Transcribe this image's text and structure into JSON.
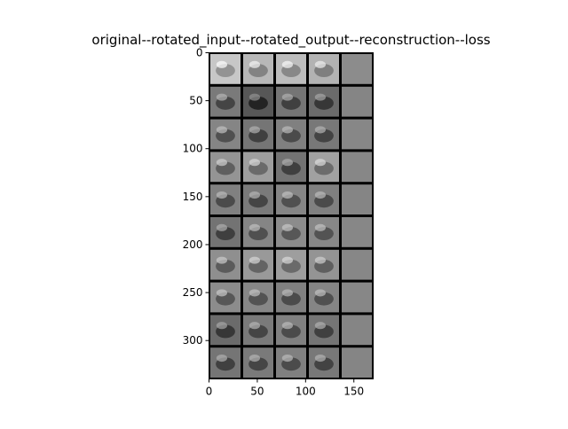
{
  "chart_data": {
    "type": "image-grid",
    "title": "original--rotated_input--rotated_output--reconstruction--loss",
    "xlabel": "",
    "ylabel": "",
    "xlim": [
      0,
      170
    ],
    "ylim": [
      0,
      340
    ],
    "x_ticks": [
      0,
      50,
      100,
      150
    ],
    "y_ticks": [
      0,
      50,
      100,
      150,
      200,
      250,
      300
    ],
    "columns": [
      "original",
      "rotated_input",
      "rotated_output",
      "reconstruction",
      "loss"
    ],
    "rows": 10,
    "cell_size": 34,
    "grid": false,
    "image_colormap": "gray",
    "row_tones": [
      [
        0.78,
        0.72,
        0.74,
        0.7,
        0.55
      ],
      [
        0.48,
        0.34,
        0.46,
        0.42,
        0.52
      ],
      [
        0.52,
        0.46,
        0.5,
        0.47,
        0.53
      ],
      [
        0.58,
        0.62,
        0.45,
        0.63,
        0.53
      ],
      [
        0.5,
        0.48,
        0.52,
        0.5,
        0.52
      ],
      [
        0.45,
        0.52,
        0.55,
        0.53,
        0.53
      ],
      [
        0.56,
        0.6,
        0.62,
        0.58,
        0.53
      ],
      [
        0.55,
        0.53,
        0.5,
        0.52,
        0.53
      ],
      [
        0.42,
        0.48,
        0.5,
        0.46,
        0.52
      ],
      [
        0.46,
        0.48,
        0.5,
        0.47,
        0.52
      ]
    ]
  }
}
